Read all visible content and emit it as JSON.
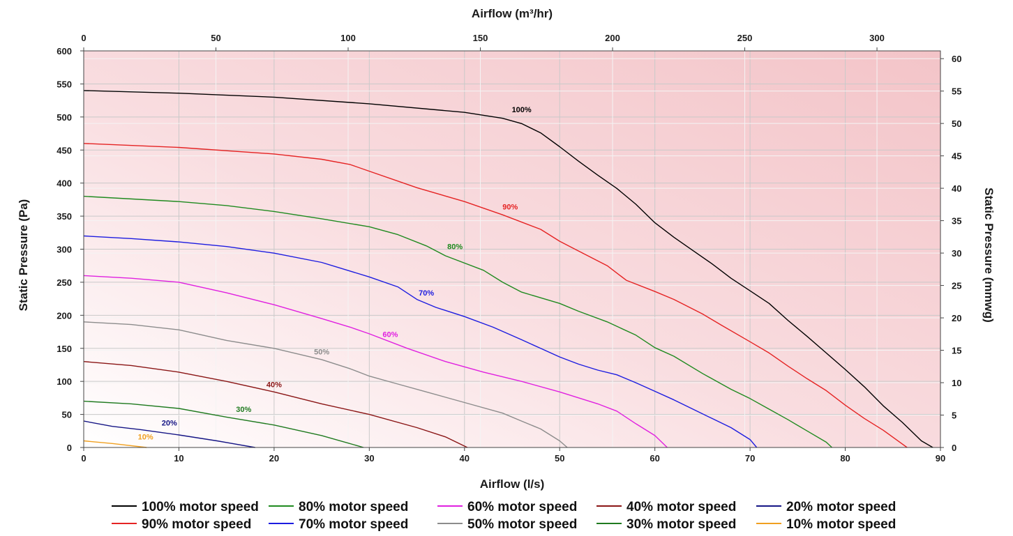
{
  "chart_data": {
    "type": "line",
    "title": "",
    "xlabel": "Airflow (l/s)",
    "x2label": "Airflow (m³/hr)",
    "ylabel": "Static Pressure (Pa)",
    "y2label": "Static Pressure (mmwg)",
    "xlim": [
      0,
      90
    ],
    "ylim": [
      0,
      600
    ],
    "x2lim": [
      0,
      324
    ],
    "y2lim": [
      0,
      61.2
    ],
    "x_ticks": [
      0,
      10,
      20,
      30,
      40,
      50,
      60,
      70,
      80,
      90
    ],
    "y_ticks": [
      0,
      50,
      100,
      150,
      200,
      250,
      300,
      350,
      400,
      450,
      500,
      550,
      600
    ],
    "x2_ticks": [
      0,
      50,
      100,
      150,
      200,
      250,
      300
    ],
    "y2_ticks": [
      0,
      5,
      10,
      15,
      20,
      25,
      30,
      35,
      40,
      45,
      50,
      55,
      60
    ],
    "grid": true,
    "legend_position": "bottom",
    "series": [
      {
        "name": "100% motor speed",
        "label": "100%",
        "color": "#000000",
        "label_at": [
          46.0,
          507
        ],
        "points": [
          [
            0,
            540
          ],
          [
            10,
            536
          ],
          [
            20,
            530
          ],
          [
            30,
            520
          ],
          [
            40,
            507
          ],
          [
            44,
            498
          ],
          [
            46,
            490
          ],
          [
            48,
            476
          ],
          [
            50,
            455
          ],
          [
            52,
            433
          ],
          [
            54,
            412
          ],
          [
            56,
            392
          ],
          [
            58,
            368
          ],
          [
            60,
            340
          ],
          [
            62,
            318
          ],
          [
            64,
            298
          ],
          [
            66,
            278
          ],
          [
            68,
            256
          ],
          [
            70,
            237
          ],
          [
            72,
            218
          ],
          [
            74,
            192
          ],
          [
            76,
            168
          ],
          [
            78,
            143
          ],
          [
            80,
            118
          ],
          [
            82,
            92
          ],
          [
            84,
            63
          ],
          [
            86,
            38
          ],
          [
            88,
            10
          ],
          [
            89.2,
            0
          ]
        ]
      },
      {
        "name": "90% motor speed",
        "label": "90%",
        "color": "#e52323",
        "label_at": [
          44.8,
          360
        ],
        "points": [
          [
            0,
            460
          ],
          [
            10,
            454
          ],
          [
            20,
            444
          ],
          [
            25,
            436
          ],
          [
            28,
            428
          ],
          [
            30,
            418
          ],
          [
            35,
            393
          ],
          [
            40,
            372
          ],
          [
            44,
            352
          ],
          [
            48,
            330
          ],
          [
            50,
            312
          ],
          [
            52,
            297
          ],
          [
            55,
            275
          ],
          [
            57,
            253
          ],
          [
            60,
            236
          ],
          [
            62,
            224
          ],
          [
            65,
            202
          ],
          [
            67,
            185
          ],
          [
            70,
            160
          ],
          [
            72,
            143
          ],
          [
            74,
            123
          ],
          [
            76,
            104
          ],
          [
            78,
            86
          ],
          [
            80,
            64
          ],
          [
            82,
            44
          ],
          [
            84,
            26
          ],
          [
            86.5,
            0
          ]
        ]
      },
      {
        "name": "80% motor speed",
        "label": "80%",
        "color": "#1f8a1f",
        "label_at": [
          39.0,
          300
        ],
        "points": [
          [
            0,
            380
          ],
          [
            10,
            372
          ],
          [
            15,
            366
          ],
          [
            20,
            357
          ],
          [
            25,
            346
          ],
          [
            30,
            334
          ],
          [
            33,
            322
          ],
          [
            36,
            305
          ],
          [
            38,
            290
          ],
          [
            42,
            268
          ],
          [
            44,
            250
          ],
          [
            46,
            235
          ],
          [
            50,
            218
          ],
          [
            52,
            206
          ],
          [
            55,
            190
          ],
          [
            58,
            170
          ],
          [
            60,
            151
          ],
          [
            62,
            138
          ],
          [
            65,
            112
          ],
          [
            68,
            88
          ],
          [
            70,
            74
          ],
          [
            72,
            58
          ],
          [
            74,
            42
          ],
          [
            76,
            25
          ],
          [
            78,
            8
          ],
          [
            78.6,
            0
          ]
        ]
      },
      {
        "name": "70% motor speed",
        "label": "70%",
        "color": "#1c1ce0",
        "label_at": [
          36.0,
          230
        ],
        "points": [
          [
            0,
            320
          ],
          [
            5,
            316
          ],
          [
            10,
            311
          ],
          [
            15,
            304
          ],
          [
            20,
            294
          ],
          [
            25,
            280
          ],
          [
            30,
            258
          ],
          [
            33,
            243
          ],
          [
            35,
            224
          ],
          [
            37,
            212
          ],
          [
            40,
            198
          ],
          [
            43,
            182
          ],
          [
            46,
            163
          ],
          [
            48,
            150
          ],
          [
            50,
            137
          ],
          [
            52,
            126
          ],
          [
            54,
            117
          ],
          [
            56,
            110
          ],
          [
            58,
            98
          ],
          [
            60,
            85
          ],
          [
            62,
            72
          ],
          [
            64,
            58
          ],
          [
            66,
            44
          ],
          [
            68,
            30
          ],
          [
            70,
            12
          ],
          [
            70.7,
            0
          ]
        ]
      },
      {
        "name": "60% motor speed",
        "label": "60%",
        "color": "#e020e0",
        "label_at": [
          32.2,
          167
        ],
        "points": [
          [
            0,
            260
          ],
          [
            5,
            256
          ],
          [
            10,
            250
          ],
          [
            15,
            234
          ],
          [
            20,
            216
          ],
          [
            25,
            195
          ],
          [
            28,
            182
          ],
          [
            30,
            172
          ],
          [
            34,
            150
          ],
          [
            38,
            130
          ],
          [
            42,
            114
          ],
          [
            46,
            100
          ],
          [
            50,
            84
          ],
          [
            54,
            66
          ],
          [
            56,
            55
          ],
          [
            58,
            36
          ],
          [
            60,
            18
          ],
          [
            61.3,
            0
          ]
        ]
      },
      {
        "name": "50% motor speed",
        "label": "50%",
        "color": "#8c8c8c",
        "label_at": [
          25.0,
          141
        ],
        "points": [
          [
            0,
            190
          ],
          [
            5,
            186
          ],
          [
            10,
            178
          ],
          [
            15,
            162
          ],
          [
            20,
            150
          ],
          [
            25,
            133
          ],
          [
            28,
            119
          ],
          [
            30,
            108
          ],
          [
            33,
            96
          ],
          [
            36,
            84
          ],
          [
            40,
            68
          ],
          [
            44,
            52
          ],
          [
            46,
            40
          ],
          [
            48,
            28
          ],
          [
            50,
            10
          ],
          [
            50.8,
            0
          ]
        ]
      },
      {
        "name": "40% motor speed",
        "label": "40%",
        "color": "#8a1515",
        "label_at": [
          20.0,
          91
        ],
        "points": [
          [
            0,
            130
          ],
          [
            5,
            124
          ],
          [
            10,
            114
          ],
          [
            15,
            100
          ],
          [
            20,
            84
          ],
          [
            25,
            66
          ],
          [
            30,
            50
          ],
          [
            35,
            30
          ],
          [
            38,
            16
          ],
          [
            40.3,
            0
          ]
        ]
      },
      {
        "name": "30% motor speed",
        "label": "30%",
        "color": "#1f7a1f",
        "label_at": [
          16.8,
          54
        ],
        "points": [
          [
            0,
            70
          ],
          [
            5,
            66
          ],
          [
            10,
            59
          ],
          [
            15,
            46
          ],
          [
            20,
            34
          ],
          [
            25,
            18
          ],
          [
            29.4,
            0
          ]
        ]
      },
      {
        "name": "20% motor speed",
        "label": "20%",
        "color": "#151585",
        "label_at": [
          9.0,
          33
        ],
        "points": [
          [
            0,
            40
          ],
          [
            3,
            32
          ],
          [
            6,
            27
          ],
          [
            10,
            19
          ],
          [
            14,
            10
          ],
          [
            18,
            0
          ]
        ]
      },
      {
        "name": "10% motor speed",
        "label": "10%",
        "color": "#f0a020",
        "label_at": [
          6.5,
          12
        ],
        "points": [
          [
            0,
            10
          ],
          [
            3,
            6
          ],
          [
            6.6,
            0
          ]
        ]
      }
    ],
    "legend_order": [
      "100% motor speed",
      "80% motor speed",
      "60% motor speed",
      "40% motor speed",
      "20% motor speed",
      "90% motor speed",
      "70% motor speed",
      "50% motor speed",
      "30% motor speed",
      "10% motor speed"
    ]
  }
}
